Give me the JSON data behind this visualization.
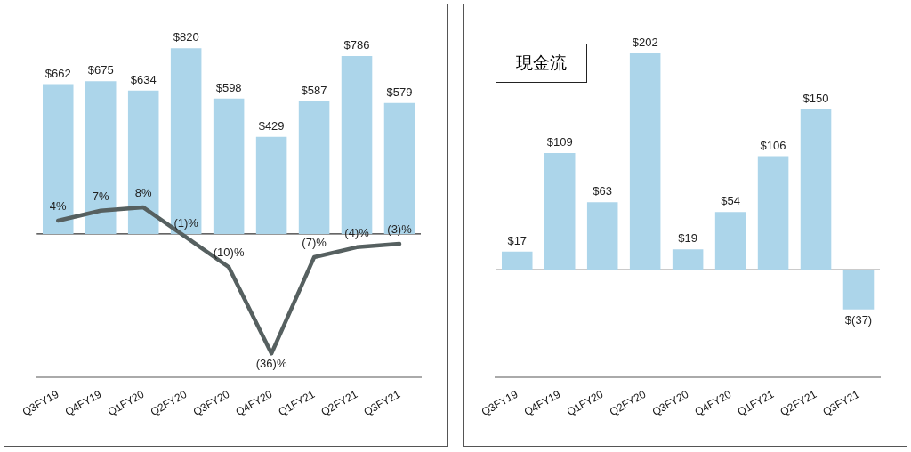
{
  "chart_data": [
    {
      "type": "bar",
      "categories": [
        "Q3FY19",
        "Q4FY19",
        "Q1FY20",
        "Q2FY20",
        "Q3FY20",
        "Q4FY20",
        "Q1FY21",
        "Q2FY21",
        "Q3FY21"
      ],
      "series": [
        {
          "color": "#acd5ea",
          "values": [
            662,
            675,
            634,
            820,
            598,
            429,
            587,
            786,
            579
          ],
          "value_labels": [
            "$662",
            "$675",
            "$634",
            "$820",
            "$598",
            "$429",
            "$587",
            "$786",
            "$579"
          ]
        },
        {
          "type": "line",
          "axis": "y2",
          "color": "#566060",
          "values": [
            4,
            7,
            8,
            -1,
            -10,
            -36,
            -7,
            -4,
            -3
          ],
          "value_labels": [
            "4%",
            "7%",
            "8%",
            "(1)%",
            "(10)%",
            "(36)%",
            "(7)%",
            "(4)%",
            "(3)%"
          ]
        }
      ],
      "tick_labels": "x",
      "grid": false,
      "legend": false,
      "marker": "none",
      "ref_lines": [
        {
          "axis": "y",
          "value": 0,
          "color": "#333333"
        }
      ]
    },
    {
      "type": "bar",
      "title": "現金流",
      "categories": [
        "Q3FY19",
        "Q4FY19",
        "Q1FY20",
        "Q2FY20",
        "Q3FY20",
        "Q4FY20",
        "Q1FY21",
        "Q2FY21",
        "Q3FY21"
      ],
      "series": [
        {
          "color": "#acd5ea",
          "values": [
            17,
            109,
            63,
            202,
            19,
            54,
            106,
            150,
            -37
          ],
          "value_labels": [
            "$17",
            "$109",
            "$63",
            "$202",
            "$19",
            "$54",
            "$106",
            "$150",
            "$(37)"
          ]
        }
      ],
      "tick_labels": "x",
      "grid": false,
      "legend": false,
      "ref_lines": [
        {
          "axis": "y",
          "value": 0,
          "color": "#333333"
        }
      ]
    }
  ]
}
